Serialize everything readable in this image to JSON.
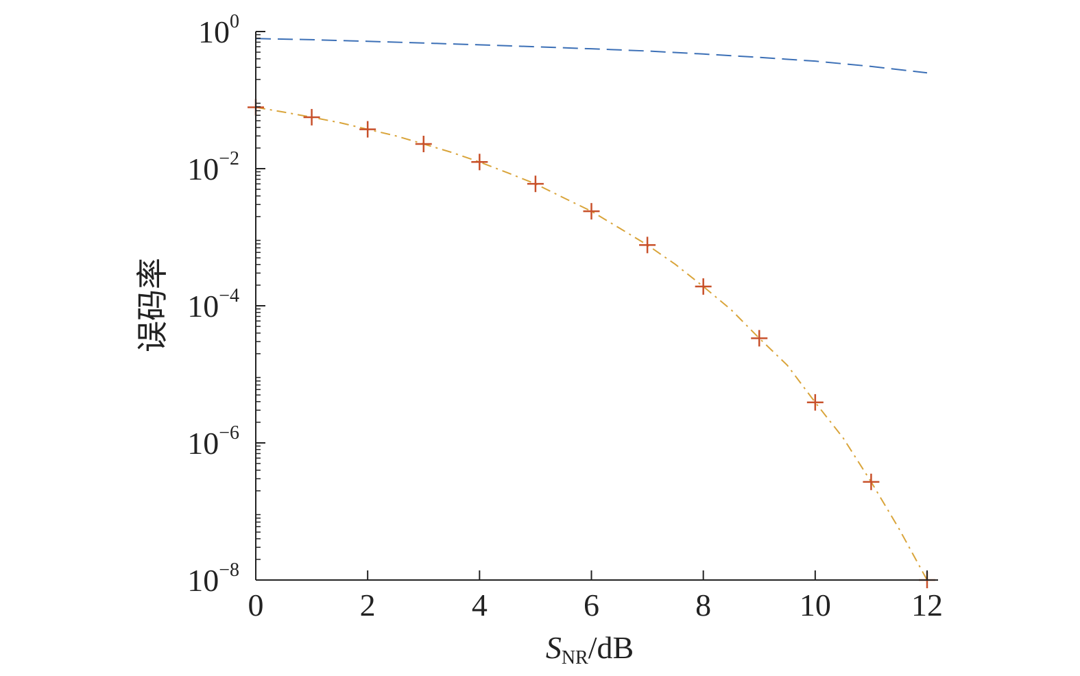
{
  "chart_data": {
    "type": "line",
    "title": "",
    "xlabel": {
      "main": "S",
      "subscript": "NR",
      "suffix": "/dB"
    },
    "ylabel": "误码率",
    "x_scale": "linear",
    "y_scale": "log",
    "xlim": [
      0,
      12
    ],
    "ylim": [
      1e-08,
      1
    ],
    "x_ticks": [
      0,
      2,
      4,
      6,
      8,
      10,
      12
    ],
    "x_tick_labels": [
      "0",
      "2",
      "4",
      "6",
      "8",
      "10",
      "12"
    ],
    "y_ticks": [
      1,
      0.01,
      0.0001,
      1e-06,
      1e-08
    ],
    "y_tick_labels": [
      {
        "base": "10",
        "exp": "0"
      },
      {
        "base": "10",
        "exp": "−2"
      },
      {
        "base": "10",
        "exp": "−4"
      },
      {
        "base": "10",
        "exp": "−6"
      },
      {
        "base": "10",
        "exp": "−8"
      }
    ],
    "grid": false,
    "legend": "none",
    "series": [
      {
        "style": "dashed",
        "color": "#3b6fb6",
        "marker": "none",
        "x": [
          0,
          1,
          2,
          3,
          4,
          5,
          6,
          7,
          8,
          9,
          10,
          11,
          12
        ],
        "y": [
          0.79,
          0.76,
          0.72,
          0.68,
          0.64,
          0.6,
          0.56,
          0.52,
          0.47,
          0.42,
          0.37,
          0.31,
          0.25
        ]
      },
      {
        "style": "dashdot",
        "color": "#d9a43a",
        "marker": "none",
        "x": [
          0,
          0.5,
          1,
          1.5,
          2,
          2.5,
          3,
          3.5,
          4,
          4.5,
          5,
          5.5,
          6,
          6.5,
          7,
          7.5,
          8,
          8.5,
          9,
          9.5,
          10,
          10.5,
          11,
          11.5,
          12
        ],
        "y": [
          0.0786,
          0.0668,
          0.0563,
          0.0469,
          0.0375,
          0.0301,
          0.0229,
          0.0173,
          0.0125,
          0.00872,
          0.006,
          0.00377,
          0.00239,
          0.00136,
          0.00077,
          0.000402,
          0.000191,
          8.71e-05,
          3.36e-05,
          1.36e-05,
          3.9e-06,
          1.18e-06,
          2.7e-07,
          5.56e-08,
          1e-08
        ]
      },
      {
        "style": "none",
        "color": "#c8502a",
        "marker": "plus",
        "x": [
          0,
          1,
          2,
          3,
          4,
          5,
          6,
          7,
          8,
          9,
          10,
          11,
          12
        ],
        "y": [
          0.0786,
          0.0563,
          0.0375,
          0.0229,
          0.0125,
          0.006,
          0.00239,
          0.00077,
          0.000191,
          3.36e-05,
          3.9e-06,
          2.7e-07,
          1e-08
        ]
      }
    ]
  }
}
